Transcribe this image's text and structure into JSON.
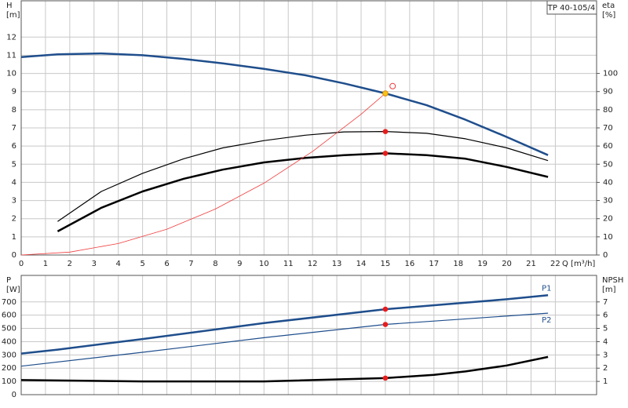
{
  "header": {
    "model": "TP 40-105/4"
  },
  "chart_data": [
    {
      "type": "line",
      "ylabel": [
        "H",
        "[m]"
      ],
      "y2label": [
        "eta",
        "[%]"
      ],
      "xlabel": "Q [m³/h]",
      "xlim": [
        0,
        23.7
      ],
      "ylim": [
        0,
        14
      ],
      "y2lim": [
        0,
        140
      ],
      "xticks": [
        0,
        1,
        2,
        3,
        4,
        5,
        6,
        7,
        8,
        9,
        10,
        11,
        12,
        13,
        14,
        15,
        16,
        17,
        18,
        19,
        20,
        21,
        22
      ],
      "yticks": [
        0,
        1,
        2,
        3,
        4,
        5,
        6,
        7,
        8,
        9,
        10,
        11,
        12
      ],
      "y2ticks": [
        0,
        10,
        20,
        30,
        40,
        50,
        60,
        70,
        80,
        90,
        100
      ],
      "grid": true,
      "series": [
        {
          "color": "#1f4e8c",
          "width": 2.5,
          "x": [
            0,
            1.5,
            3.3,
            5,
            6.7,
            8.3,
            10,
            11.7,
            13.3,
            15,
            16.7,
            18.3,
            20,
            21.7
          ],
          "values": [
            10.9,
            11.05,
            11.1,
            11.0,
            10.8,
            10.55,
            10.25,
            9.9,
            9.45,
            8.9,
            8.25,
            7.45,
            6.5,
            5.5
          ]
        },
        {
          "color": "#000000",
          "width": 1.2,
          "axis": "y2",
          "x": [
            1.5,
            3.3,
            5,
            6.7,
            8.3,
            10,
            11.7,
            13.3,
            15,
            16.7,
            18.3,
            20,
            21.7
          ],
          "values": [
            18.5,
            35,
            45,
            53,
            59,
            63,
            66,
            67.8,
            68,
            67,
            64,
            59,
            52
          ]
        },
        {
          "color": "#000000",
          "width": 2.5,
          "axis": "y2",
          "x": [
            1.5,
            3.3,
            5,
            6.7,
            8.3,
            10,
            11.7,
            13.3,
            15,
            16.7,
            18.3,
            20,
            21.7
          ],
          "values": [
            13,
            26,
            35,
            42,
            47,
            51,
            53.5,
            55,
            56,
            55,
            53,
            48.5,
            43
          ]
        },
        {
          "color": "#f03c3c",
          "width": 0.8,
          "x": [
            0,
            2,
            4,
            6,
            8,
            10,
            12,
            14,
            15
          ],
          "values": [
            0,
            0.16,
            0.63,
            1.42,
            2.53,
            3.96,
            5.7,
            7.75,
            8.9
          ]
        },
        {
          "style": "point",
          "color": "#e81c1c",
          "axis": "y2",
          "x": [
            15,
            15
          ],
          "values": [
            68,
            56
          ]
        },
        {
          "style": "point",
          "color": "#f5c518",
          "x": [
            15
          ],
          "values": [
            8.9
          ]
        },
        {
          "style": "hollow",
          "color": "#f03c3c",
          "x": [
            15.3
          ],
          "values": [
            9.3
          ]
        }
      ]
    },
    {
      "type": "line",
      "ylabel": [
        "P",
        "[W]"
      ],
      "y2label": [
        "NPSH",
        "[m]"
      ],
      "xlim": [
        0,
        23.7
      ],
      "ylim": [
        0,
        900
      ],
      "y2lim": [
        0,
        9
      ],
      "yticks": [
        0,
        100,
        200,
        300,
        400,
        500,
        600,
        700
      ],
      "y2ticks": [
        1,
        2,
        3,
        4,
        5,
        6,
        7
      ],
      "grid": true,
      "series": [
        {
          "name": "P1",
          "color": "#1f4e8c",
          "width": 2.5,
          "x": [
            0,
            1.5,
            5,
            10,
            15,
            20,
            21.7
          ],
          "values": [
            310,
            340,
            420,
            540,
            645,
            720,
            750
          ]
        },
        {
          "name": "P2",
          "color": "#1f4e8c",
          "width": 1.2,
          "x": [
            0,
            5,
            10,
            15,
            21.7
          ],
          "values": [
            215,
            320,
            430,
            530,
            615
          ]
        },
        {
          "color": "#000000",
          "width": 2.5,
          "axis": "y2",
          "x": [
            0,
            5,
            10,
            15,
            17,
            18.3,
            20,
            21.7
          ],
          "values": [
            1.1,
            1.0,
            1.0,
            1.25,
            1.5,
            1.75,
            2.2,
            2.85
          ]
        },
        {
          "style": "point",
          "color": "#e81c1c",
          "x": [
            15,
            15
          ],
          "values": [
            645,
            530
          ]
        },
        {
          "style": "point",
          "color": "#e81c1c",
          "axis": "y2",
          "x": [
            15
          ],
          "values": [
            1.25
          ]
        }
      ]
    }
  ]
}
